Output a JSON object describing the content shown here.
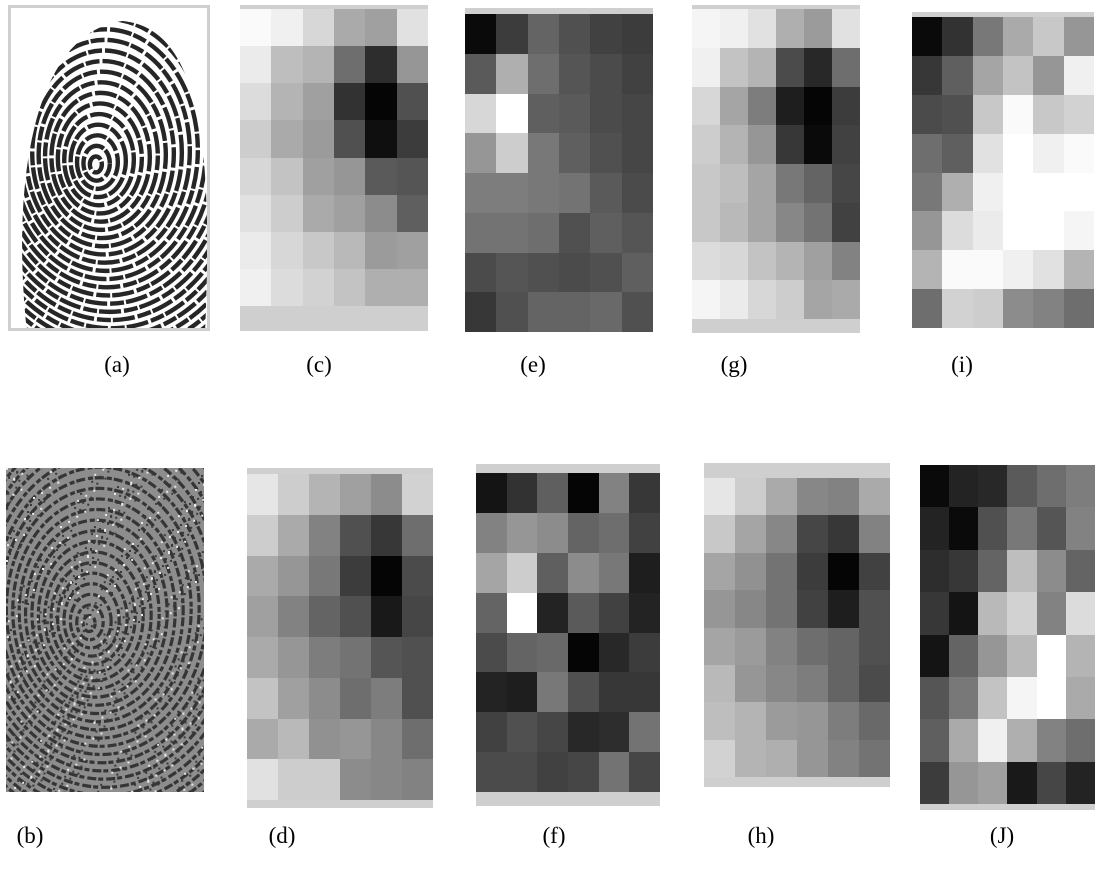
{
  "panels": [
    {
      "label": "(a)",
      "kind": "fingerprint",
      "variant": "clean"
    },
    {
      "label": "(b)",
      "kind": "fingerprint",
      "variant": "noisy"
    },
    {
      "label": "(c)",
      "kind": "grid",
      "rows": [
        [
          250,
          240,
          215,
          170,
          160,
          225
        ],
        [
          235,
          190,
          180,
          110,
          45,
          150
        ],
        [
          220,
          180,
          160,
          50,
          5,
          80
        ],
        [
          205,
          170,
          155,
          80,
          15,
          60
        ],
        [
          215,
          195,
          160,
          150,
          90,
          85
        ],
        [
          225,
          205,
          170,
          160,
          140,
          95
        ],
        [
          235,
          215,
          200,
          185,
          155,
          160
        ],
        [
          240,
          220,
          210,
          195,
          175,
          175
        ]
      ]
    },
    {
      "label": "(d)",
      "kind": "grid",
      "rows": [
        [
          230,
          205,
          180,
          160,
          140,
          210
        ],
        [
          205,
          170,
          130,
          80,
          55,
          110
        ],
        [
          170,
          150,
          120,
          60,
          5,
          75
        ],
        [
          160,
          130,
          100,
          80,
          25,
          70
        ],
        [
          170,
          150,
          125,
          115,
          85,
          80
        ],
        [
          195,
          160,
          140,
          110,
          125,
          80
        ],
        [
          170,
          185,
          145,
          150,
          135,
          110
        ],
        [
          225,
          205,
          205,
          140,
          135,
          130
        ]
      ]
    },
    {
      "label": "(e)",
      "kind": "grid",
      "rows": [
        [
          10,
          60,
          100,
          80,
          65,
          60
        ],
        [
          90,
          175,
          110,
          85,
          75,
          65
        ],
        [
          215,
          255,
          95,
          90,
          75,
          70
        ],
        [
          150,
          205,
          120,
          95,
          80,
          70
        ],
        [
          125,
          125,
          120,
          115,
          90,
          75
        ],
        [
          115,
          115,
          110,
          80,
          95,
          85
        ],
        [
          75,
          85,
          80,
          75,
          80,
          95
        ],
        [
          55,
          80,
          100,
          100,
          105,
          80
        ]
      ]
    },
    {
      "label": "(f)",
      "kind": "grid",
      "rows": [
        [
          20,
          50,
          95,
          5,
          130,
          55
        ],
        [
          130,
          150,
          140,
          100,
          110,
          65
        ],
        [
          165,
          205,
          95,
          140,
          120,
          30
        ],
        [
          100,
          255,
          35,
          90,
          65,
          35
        ],
        [
          75,
          100,
          105,
          5,
          40,
          60
        ],
        [
          35,
          30,
          120,
          80,
          55,
          55
        ],
        [
          65,
          80,
          70,
          40,
          45,
          115
        ],
        [
          75,
          75,
          65,
          70,
          115,
          70
        ]
      ]
    },
    {
      "label": "(g)",
      "kind": "grid",
      "rows": [
        [
          245,
          240,
          225,
          175,
          155,
          225
        ],
        [
          240,
          195,
          180,
          75,
          40,
          110
        ],
        [
          215,
          165,
          125,
          30,
          5,
          60
        ],
        [
          205,
          180,
          150,
          55,
          10,
          65
        ],
        [
          200,
          190,
          165,
          120,
          100,
          70
        ],
        [
          200,
          185,
          165,
          135,
          115,
          65
        ],
        [
          220,
          215,
          195,
          180,
          160,
          130
        ],
        [
          245,
          235,
          215,
          205,
          165,
          170
        ]
      ]
    },
    {
      "label": "(h)",
      "kind": "grid",
      "rows": [
        [
          230,
          205,
          170,
          135,
          130,
          170
        ],
        [
          200,
          165,
          135,
          70,
          55,
          130
        ],
        [
          165,
          145,
          115,
          60,
          5,
          65
        ],
        [
          150,
          135,
          115,
          65,
          30,
          80
        ],
        [
          165,
          155,
          130,
          110,
          100,
          80
        ],
        [
          185,
          150,
          135,
          125,
          100,
          75
        ],
        [
          190,
          180,
          155,
          150,
          125,
          105
        ],
        [
          210,
          180,
          175,
          150,
          130,
          115
        ]
      ]
    },
    {
      "label": "(i)",
      "kind": "grid",
      "rows": [
        [
          10,
          50,
          120,
          170,
          200,
          150
        ],
        [
          55,
          95,
          165,
          195,
          150,
          240
        ],
        [
          75,
          80,
          200,
          250,
          200,
          210
        ],
        [
          110,
          95,
          225,
          255,
          240,
          250
        ],
        [
          120,
          175,
          240,
          255,
          255,
          255
        ],
        [
          150,
          220,
          235,
          255,
          255,
          245
        ],
        [
          180,
          250,
          250,
          240,
          225,
          180
        ],
        [
          110,
          210,
          205,
          140,
          130,
          110
        ]
      ]
    },
    {
      "label": "(J)",
      "kind": "grid",
      "rows": [
        [
          10,
          35,
          40,
          90,
          110,
          125
        ],
        [
          35,
          10,
          80,
          120,
          85,
          130
        ],
        [
          45,
          55,
          100,
          190,
          140,
          100
        ],
        [
          55,
          20,
          185,
          210,
          130,
          220
        ],
        [
          20,
          100,
          150,
          185,
          255,
          180
        ],
        [
          85,
          120,
          195,
          245,
          255,
          170
        ],
        [
          95,
          170,
          240,
          175,
          130,
          110
        ],
        [
          60,
          150,
          160,
          25,
          70,
          35
        ]
      ]
    }
  ],
  "colors": {
    "strip": "#cfcfcf",
    "background": "#ffffff",
    "ink": "#000000"
  }
}
